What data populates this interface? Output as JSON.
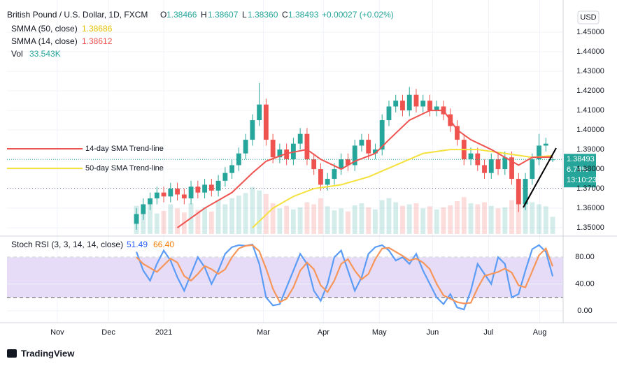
{
  "chart_data": {
    "type": "candlestick",
    "title": "British Pound / U.S. Dollar, 1D, FXCM",
    "ohlc_labels": {
      "open": "O",
      "high": "H",
      "low": "L",
      "close": "C"
    },
    "ohlc_values": {
      "open": "1.38466",
      "high": "1.38607",
      "low": "1.38360",
      "close": "1.38493"
    },
    "change": "+0.00027 (+0.02%)",
    "currency": "USD",
    "up_color": "#26a69a",
    "down_color": "#ef5350",
    "candles": {
      "open": [
        1.352,
        1.357,
        1.362,
        1.365,
        1.368,
        1.366,
        1.37,
        1.367,
        1.365,
        1.371,
        1.368,
        1.372,
        1.369,
        1.374,
        1.378,
        1.382,
        1.388,
        1.395,
        1.405,
        1.413,
        1.395,
        1.386,
        1.39,
        1.385,
        1.393,
        1.398,
        1.385,
        1.38,
        1.372,
        1.375,
        1.38,
        1.385,
        1.382,
        1.392,
        1.395,
        1.388,
        1.39,
        1.405,
        1.412,
        1.415,
        1.41,
        1.418,
        1.412,
        1.415,
        1.41,
        1.412,
        1.408,
        1.402,
        1.395,
        1.385,
        1.388,
        1.382,
        1.378,
        1.385,
        1.38,
        1.386,
        1.375,
        1.362,
        1.375,
        1.385,
        1.392,
        1.38466
      ],
      "high": [
        1.36,
        1.365,
        1.368,
        1.371,
        1.371,
        1.373,
        1.373,
        1.37,
        1.374,
        1.374,
        1.375,
        1.375,
        1.377,
        1.381,
        1.385,
        1.391,
        1.398,
        1.408,
        1.424,
        1.416,
        1.398,
        1.393,
        1.393,
        1.396,
        1.401,
        1.401,
        1.388,
        1.383,
        1.378,
        1.383,
        1.388,
        1.388,
        1.395,
        1.398,
        1.398,
        1.393,
        1.408,
        1.415,
        1.418,
        1.418,
        1.422,
        1.421,
        1.418,
        1.418,
        1.415,
        1.415,
        1.411,
        1.405,
        1.398,
        1.391,
        1.391,
        1.385,
        1.388,
        1.388,
        1.389,
        1.389,
        1.378,
        1.378,
        1.388,
        1.398,
        1.396,
        1.38607
      ],
      "low": [
        1.349,
        1.354,
        1.359,
        1.362,
        1.363,
        1.363,
        1.364,
        1.362,
        1.362,
        1.365,
        1.365,
        1.366,
        1.366,
        1.371,
        1.375,
        1.379,
        1.385,
        1.392,
        1.402,
        1.392,
        1.383,
        1.383,
        1.382,
        1.382,
        1.39,
        1.382,
        1.377,
        1.369,
        1.369,
        1.372,
        1.377,
        1.379,
        1.379,
        1.389,
        1.385,
        1.385,
        1.387,
        1.402,
        1.409,
        1.407,
        1.407,
        1.409,
        1.409,
        1.407,
        1.407,
        1.405,
        1.399,
        1.392,
        1.382,
        1.382,
        1.379,
        1.375,
        1.375,
        1.377,
        1.377,
        1.372,
        1.358,
        1.359,
        1.372,
        1.382,
        1.389,
        1.3836
      ],
      "close": [
        1.357,
        1.362,
        1.365,
        1.368,
        1.366,
        1.37,
        1.367,
        1.365,
        1.371,
        1.368,
        1.372,
        1.369,
        1.374,
        1.378,
        1.382,
        1.388,
        1.395,
        1.405,
        1.413,
        1.395,
        1.386,
        1.39,
        1.385,
        1.393,
        1.398,
        1.385,
        1.38,
        1.372,
        1.375,
        1.38,
        1.385,
        1.382,
        1.392,
        1.395,
        1.388,
        1.39,
        1.405,
        1.412,
        1.415,
        1.41,
        1.418,
        1.412,
        1.415,
        1.41,
        1.412,
        1.408,
        1.402,
        1.395,
        1.385,
        1.388,
        1.382,
        1.378,
        1.385,
        1.38,
        1.386,
        1.375,
        1.362,
        1.375,
        1.385,
        1.392,
        1.393,
        1.38493
      ]
    },
    "volume": {
      "name": "Vol",
      "value_label": "33.543K",
      "ylim": [
        0,
        150
      ],
      "values": [
        55,
        48,
        62,
        40,
        45,
        58,
        50,
        42,
        60,
        47,
        52,
        44,
        66,
        58,
        70,
        75,
        80,
        92,
        85,
        78,
        60,
        50,
        55,
        48,
        52,
        62,
        58,
        70,
        54,
        46,
        50,
        44,
        56,
        60,
        52,
        48,
        66,
        70,
        62,
        55,
        58,
        60,
        50,
        54,
        48,
        52,
        56,
        64,
        72,
        60,
        58,
        62,
        55,
        50,
        52,
        66,
        80,
        70,
        62,
        58,
        54,
        33.543
      ]
    },
    "smma": [
      {
        "name": "SMMA (50, close)",
        "value_label": "1.38686",
        "color": "#f5e13c",
        "x": [
          17,
          20,
          23,
          26,
          30,
          34,
          38,
          42,
          46,
          50,
          54,
          58,
          61
        ],
        "values": [
          1.35,
          1.36,
          1.366,
          1.37,
          1.372,
          1.376,
          1.382,
          1.388,
          1.39,
          1.39,
          1.388,
          1.386,
          1.38686
        ]
      },
      {
        "name": "SMMA (14, close)",
        "value_label": "1.38612",
        "color": "#ef5350",
        "x": [
          6,
          10,
          14,
          17,
          19,
          22,
          25,
          27,
          30,
          32,
          35,
          37,
          40,
          43,
          45,
          47,
          49,
          52,
          54,
          56,
          58,
          61
        ],
        "values": [
          1.35,
          1.36,
          1.368,
          1.378,
          1.384,
          1.388,
          1.39,
          1.385,
          1.38,
          1.384,
          1.388,
          1.395,
          1.405,
          1.41,
          1.41,
          1.4,
          1.395,
          1.39,
          1.386,
          1.382,
          1.386,
          1.38612
        ]
      }
    ],
    "annotations": [
      {
        "text": "14-day SMA Trend-line",
        "color": "#ef5350"
      },
      {
        "text": "50-day SMA Trend-line",
        "color": "#f5e13c"
      }
    ],
    "price_tag": {
      "price": "1.38493",
      "percent": "6.74%",
      "countdown": "13:10:23"
    },
    "reference_line": 1.3702,
    "xlim": [
      -18.97,
      62.53
    ],
    "xticks": [
      {
        "value": -11.6,
        "label": "Nov"
      },
      {
        "value": -4.1,
        "label": "Dec"
      },
      {
        "value": 4,
        "label": "2021"
      },
      {
        "value": 18.6,
        "label": "Mar"
      },
      {
        "value": 27.4,
        "label": "Apr"
      },
      {
        "value": 35.6,
        "label": "May"
      },
      {
        "value": 43.4,
        "label": "Jun"
      },
      {
        "value": 51.6,
        "label": "Jul"
      },
      {
        "value": 59.1,
        "label": "Aug"
      }
    ],
    "ylim": [
      1.3468,
      1.4629
    ],
    "yticks": [
      {
        "value": 1.35,
        "label": "1.35000"
      },
      {
        "value": 1.36,
        "label": "1.36000"
      },
      {
        "value": 1.37,
        "label": "1.37000"
      },
      {
        "value": 1.38,
        "label": "1.38000"
      },
      {
        "value": 1.39,
        "label": "1.39000"
      },
      {
        "value": 1.4,
        "label": "1.40000"
      },
      {
        "value": 1.41,
        "label": "1.41000"
      },
      {
        "value": 1.42,
        "label": "1.42000"
      },
      {
        "value": 1.43,
        "label": "1.43000"
      },
      {
        "value": 1.44,
        "label": "1.44000"
      },
      {
        "value": 1.45,
        "label": "1.45000"
      }
    ],
    "stoch": {
      "title": "Stoch RSI (3, 3, 14, 14, close)",
      "ylim": [
        -15.6,
        107.3
      ],
      "yticks": [
        {
          "value": 0,
          "label": "0.00"
        },
        {
          "value": 40,
          "label": "40.00"
        },
        {
          "value": 80,
          "label": "80.00"
        }
      ],
      "band": [
        20,
        80
      ],
      "band_color": "#e6dcf7",
      "series": [
        {
          "name": "K",
          "value_label": "51.49",
          "color": "#5b9cf6",
          "values": [
            88,
            60,
            45,
            70,
            90,
            75,
            50,
            30,
            55,
            80,
            65,
            40,
            60,
            85,
            95,
            98,
            97,
            99,
            70,
            20,
            8,
            10,
            35,
            60,
            85,
            70,
            30,
            15,
            40,
            80,
            90,
            60,
            30,
            50,
            85,
            95,
            98,
            90,
            75,
            80,
            70,
            85,
            60,
            40,
            20,
            10,
            25,
            5,
            2,
            30,
            70,
            55,
            40,
            80,
            70,
            20,
            25,
            60,
            92,
            98,
            88,
            51.49
          ]
        },
        {
          "name": "D",
          "value_label": "66.40",
          "color": "#f7965a",
          "values": [
            80,
            70,
            64,
            58,
            68,
            78,
            72,
            52,
            45,
            55,
            67,
            62,
            55,
            62,
            80,
            93,
            97,
            98,
            89,
            63,
            33,
            13,
            18,
            35,
            60,
            72,
            62,
            38,
            28,
            45,
            70,
            77,
            60,
            47,
            55,
            77,
            93,
            94,
            88,
            82,
            75,
            78,
            72,
            62,
            40,
            23,
            18,
            13,
            11,
            12,
            34,
            52,
            55,
            58,
            63,
            57,
            38,
            35,
            59,
            83,
            93,
            66.4
          ]
        }
      ]
    },
    "brand": "TradingView"
  }
}
